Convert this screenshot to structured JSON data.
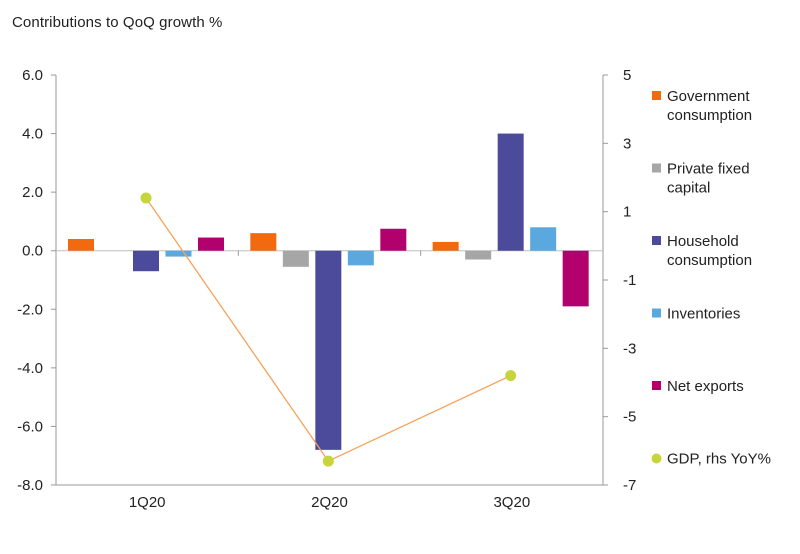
{
  "title": "Contributions to QoQ growth %",
  "chart_data": {
    "type": "bar",
    "title": "Contributions to QoQ growth %",
    "categories": [
      "1Q20",
      "2Q20",
      "3Q20"
    ],
    "ylim": [
      -8,
      6
    ],
    "y_ticks": [
      "6.0",
      "4.0",
      "2.0",
      "0.0",
      "-2.0",
      "-4.0",
      "-6.0",
      "-8.0"
    ],
    "y2lim": [
      -7,
      5
    ],
    "y2_ticks": [
      "5",
      "3",
      "1",
      "-1",
      "-3",
      "-5",
      "-7"
    ],
    "grid": false,
    "legend_position": "right",
    "series": [
      {
        "name": "Government consumption",
        "legend_lines": [
          "Government",
          "consumption"
        ],
        "color": "#f26a10",
        "values": [
          0.4,
          0.6,
          0.3
        ]
      },
      {
        "name": "Private fixed capital",
        "legend_lines": [
          "Private fixed",
          "capital"
        ],
        "color": "#a6a6a6",
        "values": [
          0.0,
          -0.55,
          -0.3
        ]
      },
      {
        "name": "Household consumption",
        "legend_lines": [
          "Household",
          "consumption"
        ],
        "color": "#4b4a9b",
        "values": [
          -0.7,
          -6.8,
          4.0
        ]
      },
      {
        "name": "Inventories",
        "legend_lines": [
          "Inventories"
        ],
        "color": "#5ba8df",
        "values": [
          -0.2,
          -0.5,
          0.8
        ]
      },
      {
        "name": "Net exports",
        "legend_lines": [
          "Net exports"
        ],
        "color": "#b2006d",
        "values": [
          0.45,
          0.75,
          -1.9
        ]
      }
    ],
    "line_series": {
      "name": "GDP, rhs YoY%",
      "legend_lines": [
        "GDP, rhs YoY%"
      ],
      "axis": "right",
      "line_color": "#f7a15a",
      "marker_color": "#c8d43c",
      "values": [
        1.4,
        -6.3,
        -3.8
      ]
    }
  }
}
